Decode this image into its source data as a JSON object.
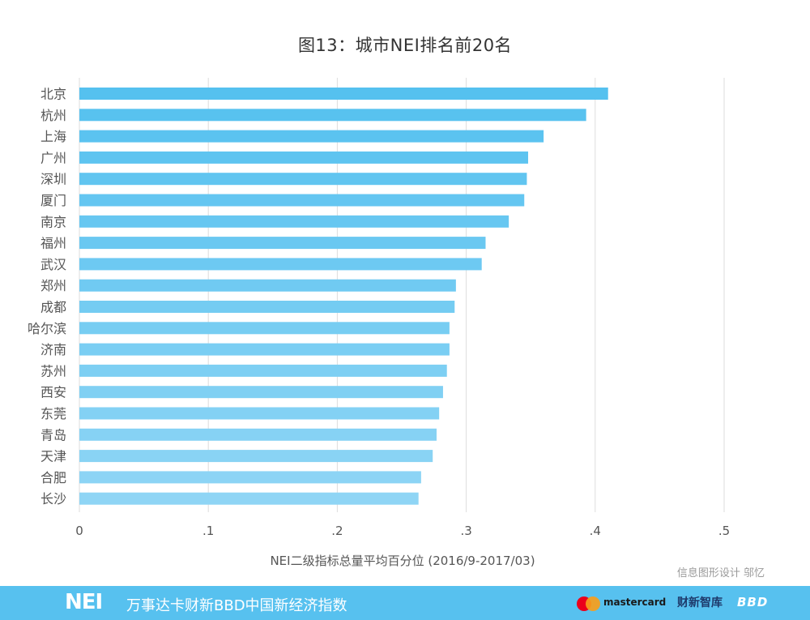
{
  "chart_data": {
    "type": "bar",
    "orientation": "horizontal",
    "title": "图13：城市NEI排名前20名",
    "xlabel": "NEI二级指标总量平均百分位 (2016/9-2017/03)",
    "ylabel": "",
    "categories": [
      "北京",
      "杭州",
      "上海",
      "广州",
      "深圳",
      "厦门",
      "南京",
      "福州",
      "武汉",
      "郑州",
      "成都",
      "哈尔滨",
      "济南",
      "苏州",
      "西安",
      "东莞",
      "青岛",
      "天津",
      "合肥",
      "长沙"
    ],
    "values": [
      0.41,
      0.393,
      0.36,
      0.348,
      0.347,
      0.345,
      0.333,
      0.315,
      0.312,
      0.292,
      0.291,
      0.287,
      0.287,
      0.285,
      0.282,
      0.279,
      0.277,
      0.274,
      0.265,
      0.263
    ],
    "xlim": [
      0,
      0.5
    ],
    "xticks": [
      0,
      0.1,
      0.2,
      0.3,
      0.4,
      0.5
    ],
    "xtick_labels": [
      "0",
      ".1",
      ".2",
      ".3",
      ".4",
      ".5"
    ],
    "grid": true,
    "colors": {
      "bar_top": "#55c1ef",
      "bar_bottom": "#8fd5f5",
      "grid": "#dddddd",
      "text": "#555555"
    }
  },
  "credit": "信息图形设计 邬忆",
  "footer": {
    "logo": "NEI",
    "subtitle": "万事达卡财新BBD中国新经济指数",
    "partner1": "mastercard",
    "partner2": "财新智库",
    "partner3": "BBD",
    "background": "#57c1ef"
  }
}
